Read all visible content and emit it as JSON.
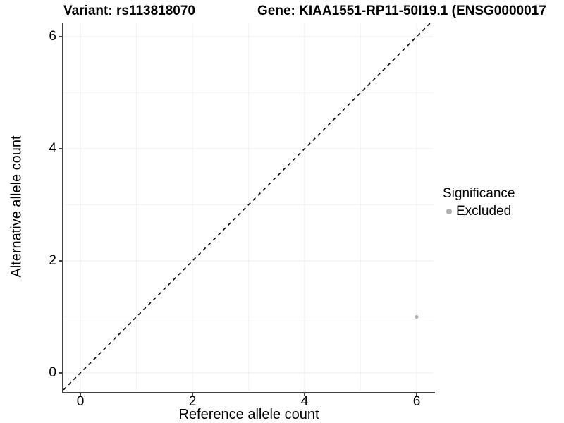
{
  "header": {
    "variant_title": "Variant: rs113818070",
    "gene_title": "Gene: KIAA1551-RP11-50I19.1 (ENSG0000017"
  },
  "axes": {
    "x": {
      "label": "Reference allele count",
      "ticks": [
        "0",
        "2",
        "4",
        "6"
      ]
    },
    "y": {
      "label": "Alternative allele count",
      "ticks": [
        "0",
        "2",
        "4",
        "6"
      ]
    }
  },
  "legend": {
    "title": "Significance",
    "items": [
      {
        "label": "Excluded",
        "color": "#b0b0b0"
      }
    ]
  },
  "colors": {
    "point": "#b0b0b0",
    "axis_line": "#444444",
    "grid_major": "#ececec",
    "grid_minor": "#f4f4f4",
    "identity_line": "#000000"
  },
  "chart_data": {
    "type": "scatter",
    "title": "Variant: rs113818070 | Gene: KIAA1551-RP11-50I19.1 (ENSG0000017",
    "xlabel": "Reference allele count",
    "ylabel": "Alternative allele count",
    "xlim": [
      -0.3,
      6.3
    ],
    "ylim": [
      -0.3,
      6.3
    ],
    "x_ticks": [
      0,
      2,
      4,
      6
    ],
    "y_ticks": [
      0,
      2,
      4,
      6
    ],
    "grid": true,
    "legend_position": "right",
    "series": [
      {
        "name": "Excluded",
        "color": "#b0b0b0",
        "points": [
          {
            "x": 6,
            "y": 1
          }
        ]
      }
    ],
    "annotations": [
      {
        "type": "line",
        "equation": "y = x",
        "style": "dashed",
        "color": "#000000"
      }
    ]
  }
}
